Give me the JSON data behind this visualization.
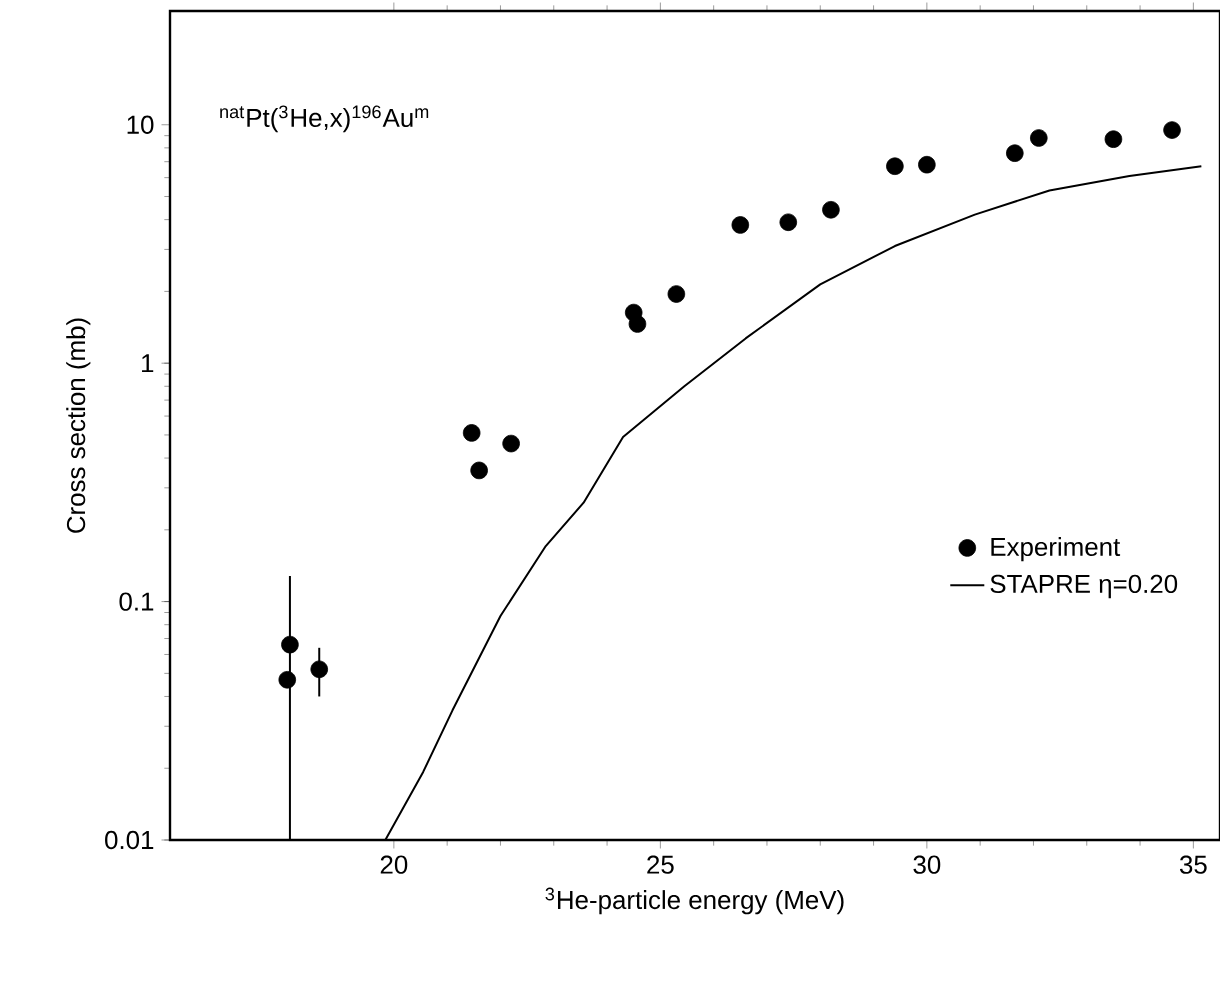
{
  "chart_data": {
    "type": "scatter",
    "xlabel": "$^{3}$He-particle energy (MeV)",
    "ylabel": "Cross section (mb)",
    "annotations": [
      "$^{nat}$Pt($^{3}$He,x)$^{196}$Au$^{m}$"
    ],
    "xlim": [
      15.8,
      35.5
    ],
    "ylim": [
      0.01,
      30
    ],
    "xticks": [
      20,
      25,
      30,
      35
    ],
    "yticks": [
      0.01,
      0.1,
      1,
      10
    ],
    "log": "y",
    "grid": false,
    "legend": "right",
    "marker": "circle",
    "series": [
      {
        "name": "Experiment",
        "color": "#000000",
        "x": [
          18.0,
          18.05,
          18.6,
          21.46,
          21.6,
          22.2,
          24.5,
          24.57,
          25.3,
          26.5,
          27.4,
          28.2,
          29.4,
          30.0,
          31.65,
          32.1,
          33.5,
          34.6
        ],
        "values": [
          0.047,
          0.066,
          0.052,
          0.51,
          0.355,
          0.46,
          1.63,
          1.46,
          1.95,
          3.8,
          3.9,
          4.4,
          6.7,
          6.8,
          7.6,
          8.8,
          8.7,
          9.5
        ],
        "errors": [
          null,
          [
            0.01,
            0.128
          ],
          [
            0.04,
            0.064
          ],
          null,
          null,
          null,
          null,
          null,
          null,
          null,
          null,
          null,
          null,
          null,
          null,
          null,
          null,
          null
        ]
      },
      {
        "name": "STAPRE  η=0.20",
        "type": "line",
        "color": "#000000",
        "marker": "none",
        "line_style": "solid",
        "x": [
          19.84,
          20.55,
          21.1,
          22.0,
          22.85,
          23.56,
          24.3,
          25.45,
          26.6,
          28.0,
          29.4,
          30.9,
          32.3,
          33.8,
          35.15
        ],
        "values": [
          0.01,
          0.0193,
          0.035,
          0.087,
          0.171,
          0.26,
          0.49,
          0.8,
          1.27,
          2.14,
          3.1,
          4.2,
          5.3,
          6.1,
          6.7
        ]
      }
    ]
  }
}
